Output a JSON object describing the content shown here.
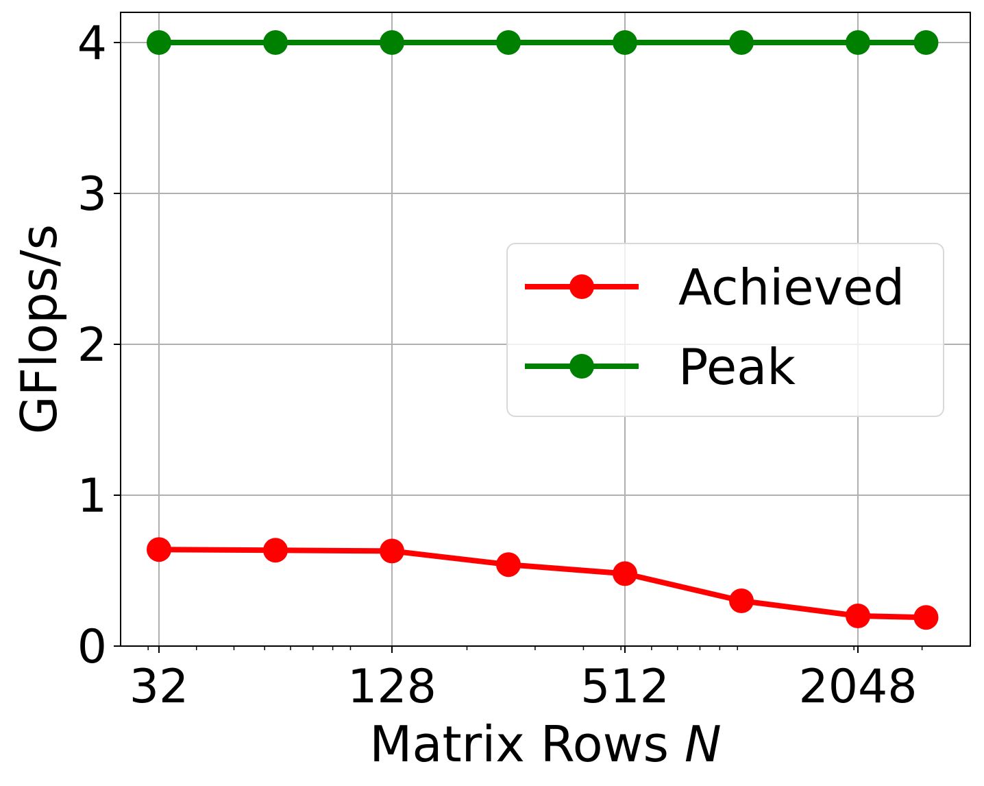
{
  "chart_data": {
    "type": "line",
    "xlabel": "Matrix Rows",
    "xlabel_var": "N",
    "ylabel": "GFlops/s",
    "x_scale": "log2",
    "x": [
      32,
      64,
      128,
      256,
      512,
      1024,
      2048,
      3072
    ],
    "x_ticks": [
      "32",
      "128",
      "512",
      "2048"
    ],
    "y_ticks": [
      "0",
      "1",
      "2",
      "3",
      "4"
    ],
    "ylim": [
      0,
      4.2
    ],
    "grid": true,
    "legend_position": "center-right",
    "series": [
      {
        "name": "Achieved",
        "color": "#ff0000",
        "values": [
          0.64,
          0.635,
          0.63,
          0.54,
          0.48,
          0.3,
          0.2,
          0.19
        ]
      },
      {
        "name": "Peak",
        "color": "#008000",
        "values": [
          4.0,
          4.0,
          4.0,
          4.0,
          4.0,
          4.0,
          4.0,
          4.0
        ]
      }
    ]
  }
}
